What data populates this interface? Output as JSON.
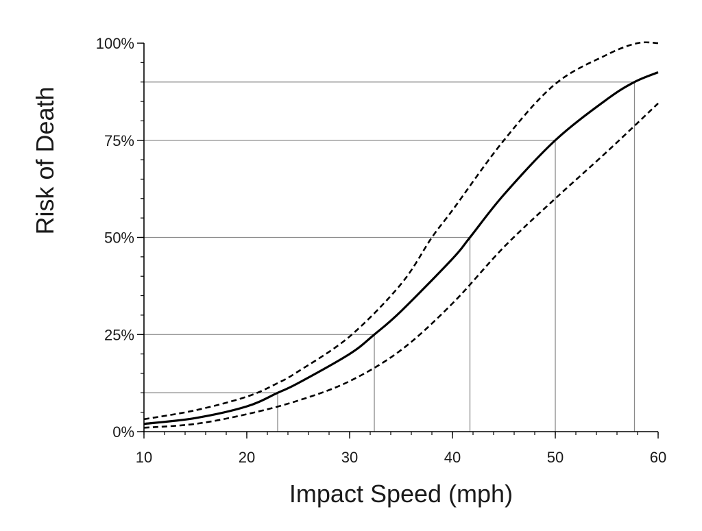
{
  "chart_data": {
    "type": "line",
    "title": "",
    "xlabel": "Impact Speed (mph)",
    "ylabel": "Risk of Death",
    "xlim": [
      10,
      60
    ],
    "ylim": [
      0,
      1
    ],
    "x_ticks": [
      10,
      20,
      30,
      40,
      50,
      60
    ],
    "x_tick_labels": [
      "10",
      "20",
      "30",
      "40",
      "50",
      "60"
    ],
    "y_ticks": [
      0,
      0.25,
      0.5,
      0.75,
      1.0
    ],
    "y_tick_labels": [
      "0%",
      "25%",
      "50%",
      "75%",
      "100%"
    ],
    "x_minor_step": 2,
    "y_minor_step": 0.05,
    "legend": "none",
    "series": [
      {
        "style": "solid",
        "x": [
          10,
          15,
          20,
          23,
          25,
          30,
          32.4,
          35,
          40,
          41.7,
          45,
          50,
          55,
          57.7,
          60
        ],
        "values": [
          0.02,
          0.035,
          0.065,
          0.1,
          0.125,
          0.2,
          0.25,
          0.31,
          0.445,
          0.5,
          0.61,
          0.75,
          0.855,
          0.9,
          0.925
        ]
      },
      {
        "style": "dashed",
        "x": [
          10,
          15,
          20,
          23,
          25,
          30,
          35,
          38,
          40,
          45,
          50,
          55,
          58,
          60
        ],
        "values": [
          0.032,
          0.055,
          0.09,
          0.125,
          0.155,
          0.245,
          0.38,
          0.5,
          0.57,
          0.75,
          0.895,
          0.97,
          1.0,
          1.0
        ]
      },
      {
        "style": "dashed",
        "x": [
          10,
          15,
          20,
          25,
          30,
          35,
          40,
          45,
          50,
          55,
          60
        ],
        "values": [
          0.01,
          0.02,
          0.045,
          0.08,
          0.13,
          0.21,
          0.33,
          0.475,
          0.6,
          0.72,
          0.845
        ]
      }
    ],
    "reference_lines": [
      {
        "risk": 0.1,
        "speed": 23
      },
      {
        "risk": 0.25,
        "speed": 32.4
      },
      {
        "risk": 0.5,
        "speed": 41.7
      },
      {
        "risk": 0.75,
        "speed": 50.0
      },
      {
        "risk": 0.9,
        "speed": 57.7
      }
    ]
  }
}
